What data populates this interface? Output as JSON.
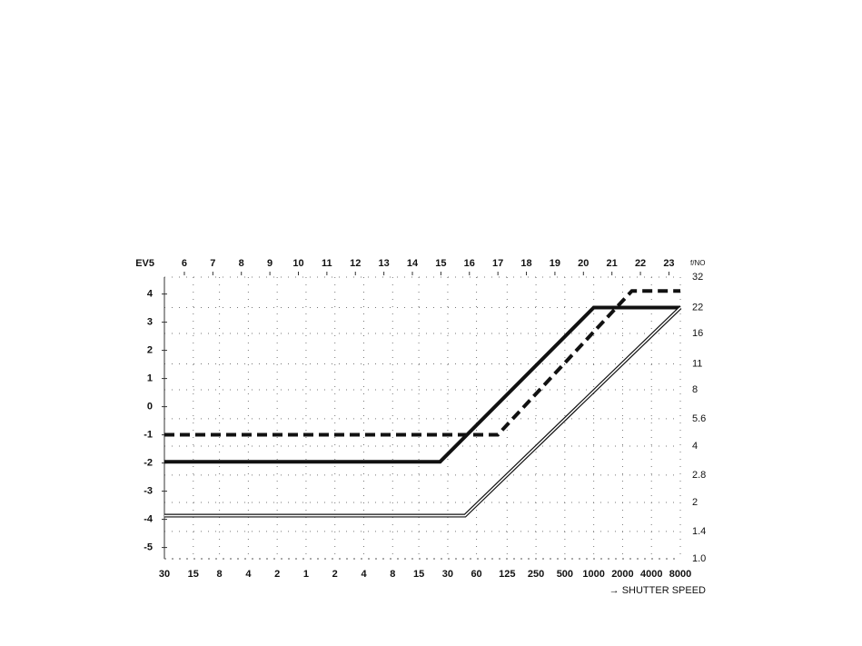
{
  "chart_data": {
    "type": "line",
    "x_label": "→ SHUTTER SPEED",
    "y_label": "f/NO",
    "x2_label": "EV5",
    "xscale": "log",
    "yscale": "log",
    "xlim": [
      30,
      0.000125
    ],
    "xticks": [
      30,
      15,
      8,
      4,
      2,
      1,
      {
        "value": 0.5,
        "label": "2"
      },
      {
        "value": 0.25,
        "label": "4"
      },
      {
        "value": 0.125,
        "label": "8"
      },
      {
        "value": 0.0667,
        "label": "15"
      },
      {
        "value": 0.0333,
        "label": "30"
      },
      {
        "value": 0.0167,
        "label": "60"
      },
      {
        "value": 0.008,
        "label": "125"
      },
      {
        "value": 0.004,
        "label": "250"
      },
      {
        "value": 0.002,
        "label": "500"
      },
      {
        "value": 0.001,
        "label": "1000"
      },
      {
        "value": 0.0005,
        "label": "2000"
      },
      {
        "value": 0.00025,
        "label": "4000"
      },
      {
        "value": 0.000125,
        "label": "8000"
      }
    ],
    "ylim": [
      1,
      32
    ],
    "yticks": [
      32,
      22,
      16,
      11,
      8,
      5.6,
      4,
      2.8,
      2,
      1.4,
      {
        "value": 1,
        "label": "1.0"
      }
    ],
    "y2lim": [
      -5.4,
      4.6
    ],
    "y2ticks": [
      4,
      3,
      2,
      1,
      0,
      -1,
      -2,
      -3,
      -4,
      -5
    ],
    "x2lim": [
      5.3,
      23.4
    ],
    "x2ticks": [
      6,
      7,
      8,
      9,
      10,
      11,
      12,
      13,
      14,
      15,
      16,
      17,
      18,
      19,
      20,
      21,
      22,
      23
    ],
    "grid": true,
    "series": [
      {
        "color": "#111111",
        "style": "solid",
        "x": [
          30,
          0.04,
          0.001,
          0.000125
        ],
        "values": [
          3.3,
          3.3,
          22,
          22
        ]
      },
      {
        "color": "#111111",
        "style": "dashed",
        "x": [
          30,
          0.01,
          0.0004,
          0.000125
        ],
        "values": [
          4.6,
          4.6,
          27,
          27
        ]
      },
      {
        "color": "#111111",
        "style": "double",
        "x": [
          30,
          0.022,
          0.000125
        ],
        "values": [
          1.7,
          1.7,
          22
        ]
      }
    ]
  }
}
